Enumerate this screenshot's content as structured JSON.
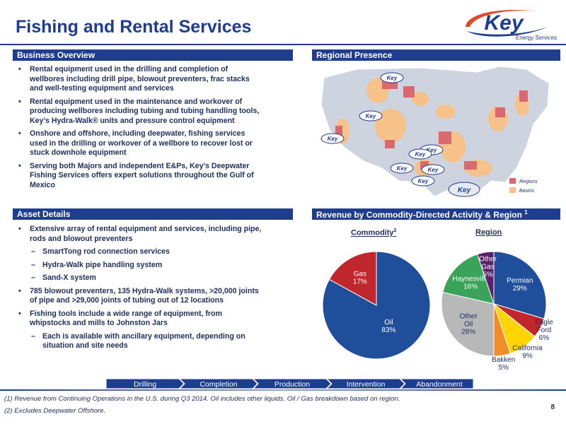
{
  "page": {
    "title": "Fishing and Rental Services",
    "page_number": "8"
  },
  "logo": {
    "wordmark": "Key",
    "tagline": "Energy Services",
    "accent": "#e04a2c"
  },
  "business_overview": {
    "heading": "Business Overview",
    "bullets": [
      "Rental equipment used in the drilling and completion of wellbores including drill pipe, blowout preventers, frac stacks and well-testing equipment and services",
      "Rental equipment used in the maintenance and workover of producing wellbores including tubing and tubing handling tools, Key’s Hydra-Walk® units and pressure control equipment",
      "Onshore and offshore, including deepwater, fishing services used in the drilling or workover of a wellbore to recover lost or stuck downhole equipment",
      "Serving both Majors and independent E&Ps, Key’s Deepwater Fishing Services offers expert solutions throughout the Gulf of Mexico"
    ]
  },
  "regional_presence": {
    "heading": "Regional Presence",
    "legend": [
      {
        "label": "Regions",
        "color": "#d9696e"
      },
      {
        "label": "Basins",
        "color": "#f7c28a"
      }
    ]
  },
  "asset_details": {
    "heading": "Asset Details",
    "bullet_1": "Extensive array of rental equipment and services, including pipe, rods and blowout preventers",
    "sub_items_1": [
      "SmartTong rod connection services",
      "Hydra-Walk pipe handling system",
      "Sand-X system"
    ],
    "bullet_2": "785 blowout preventers, 135 Hydra-Walk systems, >20,000 joints of pipe and >29,000 joints of tubing out of 12 locations",
    "bullet_3": "Fishing tools include a wide range of equipment, from whipstocks and mills to Johnston Jars",
    "sub_items_3": [
      "Each is available with ancillary equipment, depending on situation and site needs"
    ]
  },
  "revenue": {
    "heading": "Revenue by Commodity-Directed Activity & Region",
    "heading_note": "1"
  },
  "chart_data": [
    {
      "type": "pie",
      "title": "Commodity",
      "title_note": "2",
      "slices": [
        {
          "label": "Oil",
          "value": 83,
          "display": "83%",
          "color": "#1f4e9a"
        },
        {
          "label": "Gas",
          "value": 17,
          "display": "17%",
          "color": "#c0272d"
        }
      ]
    },
    {
      "type": "pie",
      "title": "Region",
      "slices": [
        {
          "label": "Permian",
          "value": 29,
          "display": "29%",
          "color": "#1f4e9a"
        },
        {
          "label": "Eagle Ford",
          "value": 6,
          "display": "6%",
          "color": "#c0272d"
        },
        {
          "label": "California",
          "value": 9,
          "display": "9%",
          "color": "#ffd400"
        },
        {
          "label": "Bakken",
          "value": 5,
          "display": "5%",
          "color": "#f28c28"
        },
        {
          "label": "Other Oil",
          "value": 28,
          "display": "28%",
          "color": "#b8b8b8"
        },
        {
          "label": "Haynesville",
          "value": 16,
          "display": "16%",
          "color": "#3aa35a"
        },
        {
          "label": "Other Gas",
          "value": 5,
          "display": "5%",
          "color": "#5c1f6b"
        }
      ]
    }
  ],
  "lifecycle": {
    "color": "#1f3d8f",
    "stages": [
      "Drilling",
      "Completion",
      "Production",
      "Intervention",
      "Abandonment"
    ]
  },
  "footnotes": [
    "(1)   Revenue from Continuing Operations in the U.S. during Q3 2014. Oil includes other liquids. Oil / Gas breakdown based on region.",
    "(2)   Excludes Deepwater Offshore."
  ]
}
